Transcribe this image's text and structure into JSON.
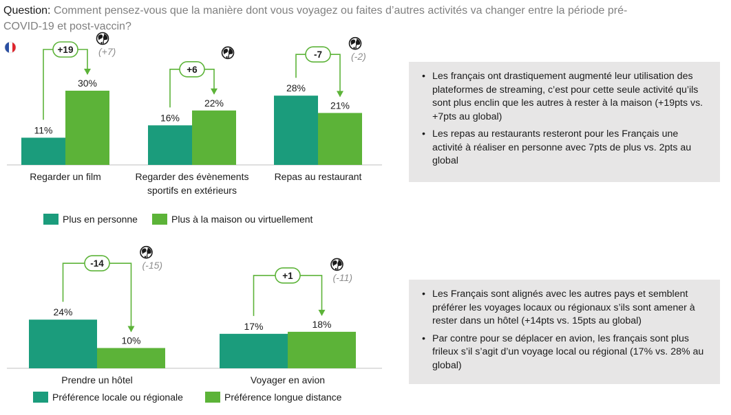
{
  "question": {
    "label": "Question:",
    "text": "Comment pensez-vous que la manière dont vous voyagez ou faites d’autres activités va changer entre la période pré-COVID-19 et post-vaccin?"
  },
  "colors": {
    "in_person": "#1b9c7c",
    "home": "#5cb338",
    "arrow": "#5cb338",
    "box_bg": "#e7e6e6"
  },
  "icons": {
    "flag": "france-flag-icon",
    "globe": "globe-icon"
  },
  "chart_data": [
    {
      "type": "bar",
      "categories": [
        "Regarder un film",
        [
          "Regarder des évènements",
          "sportifs en extérieurs"
        ],
        "Repas au restaurant"
      ],
      "series": [
        {
          "name": "Plus en personne",
          "values": [
            11,
            16,
            28
          ],
          "labels": [
            "11%",
            "16%",
            "28%"
          ]
        },
        {
          "name": "Plus à la maison ou virtuellement",
          "values": [
            30,
            22,
            21
          ],
          "labels": [
            "30%",
            "22%",
            "21%"
          ]
        }
      ],
      "deltas": [
        "+19",
        "+6",
        "-7"
      ],
      "global_deltas": [
        "(+7)",
        "",
        "(-2)"
      ],
      "legend_position": "bottom",
      "ylim": [
        0,
        40
      ]
    },
    {
      "type": "bar",
      "categories": [
        "Prendre un hôtel",
        "Voyager en avion"
      ],
      "series": [
        {
          "name": "Préférence locale ou régionale",
          "values": [
            24,
            17
          ],
          "labels": [
            "24%",
            "17%"
          ]
        },
        {
          "name": "Préférence longue distance",
          "values": [
            10,
            18
          ],
          "labels": [
            "10%",
            "18%"
          ]
        }
      ],
      "deltas": [
        "-14",
        "+1"
      ],
      "global_deltas": [
        "(-15)",
        "(-11)"
      ],
      "legend_position": "bottom",
      "ylim": [
        0,
        40
      ]
    }
  ],
  "notes": {
    "box1": [
      "Les français ont drastiquement augmenté leur utilisation des plateformes de streaming, c’est pour cette seule activité qu’ils sont plus enclin que les autres à rester à la maison (+19pts vs. +7pts au global)",
      "Les repas au restaurants resteront pour les Français une activité à réaliser en personne avec 7pts de plus vs. 2pts au global"
    ],
    "box2": [
      "Les Français sont alignés avec les autres pays et semblent préférer les voyages locaux ou régionaux s’ils sont amener à rester dans un hôtel (+14pts vs. 15pts au global)",
      "Par contre pour se déplacer en avion, les français sont plus frileux s’il s’agit d’un voyage local ou régional (17% vs. 28% au global)"
    ]
  }
}
